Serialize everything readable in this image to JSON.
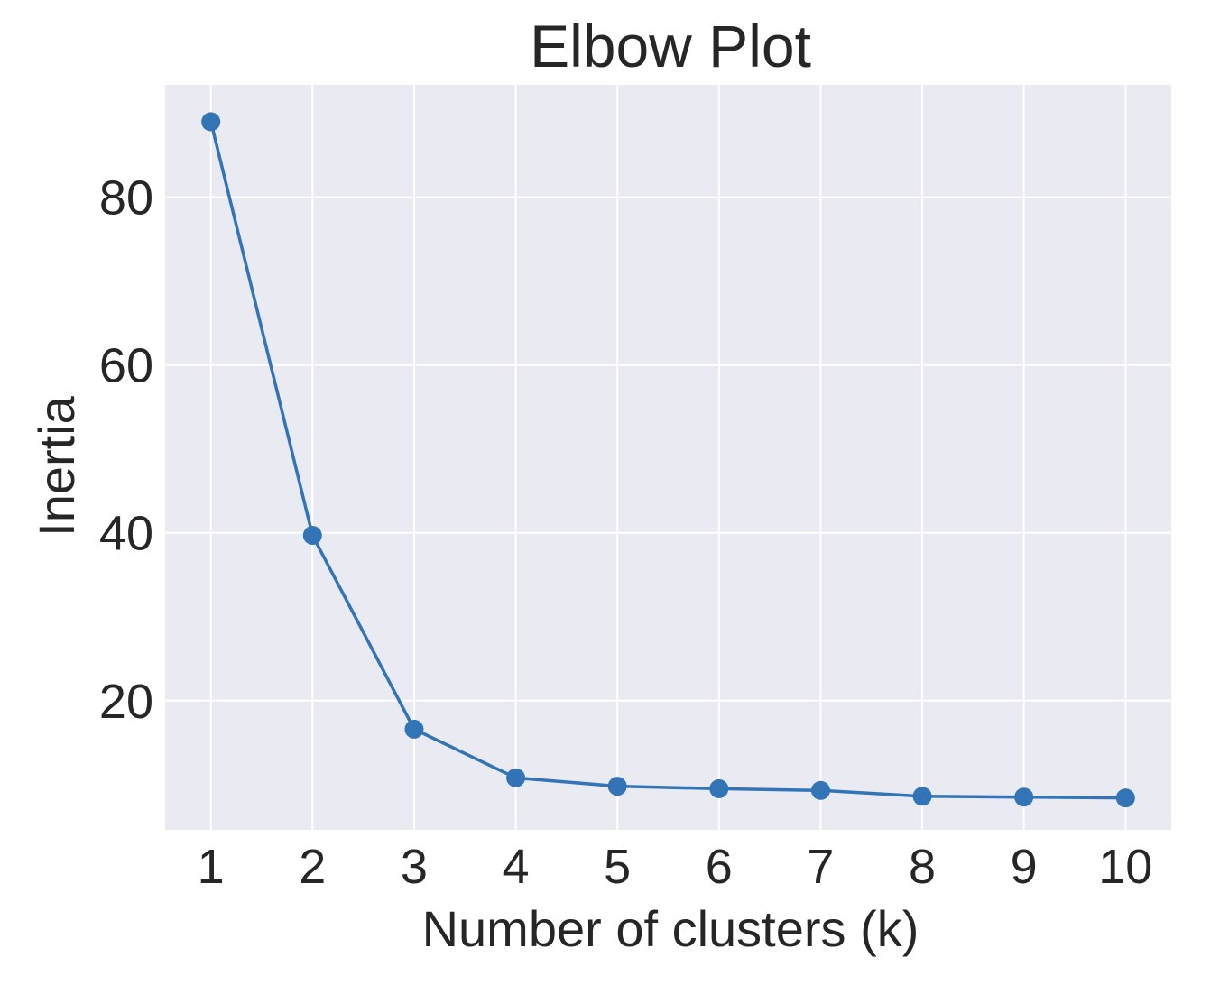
{
  "chart_data": {
    "type": "line",
    "title": "Elbow Plot",
    "xlabel": "Number of clusters (k)",
    "ylabel": "Inertia",
    "x": [
      1,
      2,
      3,
      4,
      5,
      6,
      7,
      8,
      9,
      10
    ],
    "series": [
      {
        "name": "Inertia",
        "values": [
          89.0,
          39.7,
          16.6,
          10.8,
          9.8,
          9.5,
          9.3,
          8.6,
          8.5,
          8.4
        ],
        "color": "#3274b5",
        "marker": "circle"
      }
    ],
    "xticks": [
      1,
      2,
      3,
      4,
      5,
      6,
      7,
      8,
      9,
      10
    ],
    "yticks": [
      20,
      40,
      60,
      80
    ],
    "xlim": [
      0.55,
      10.45
    ],
    "ylim": [
      4.6,
      93.4
    ],
    "grid": true,
    "legend": "none",
    "colors": {
      "plot_background": "#eaeaf2",
      "grid": "#ffffff",
      "text": "#262626",
      "line": "#3274b5"
    }
  }
}
